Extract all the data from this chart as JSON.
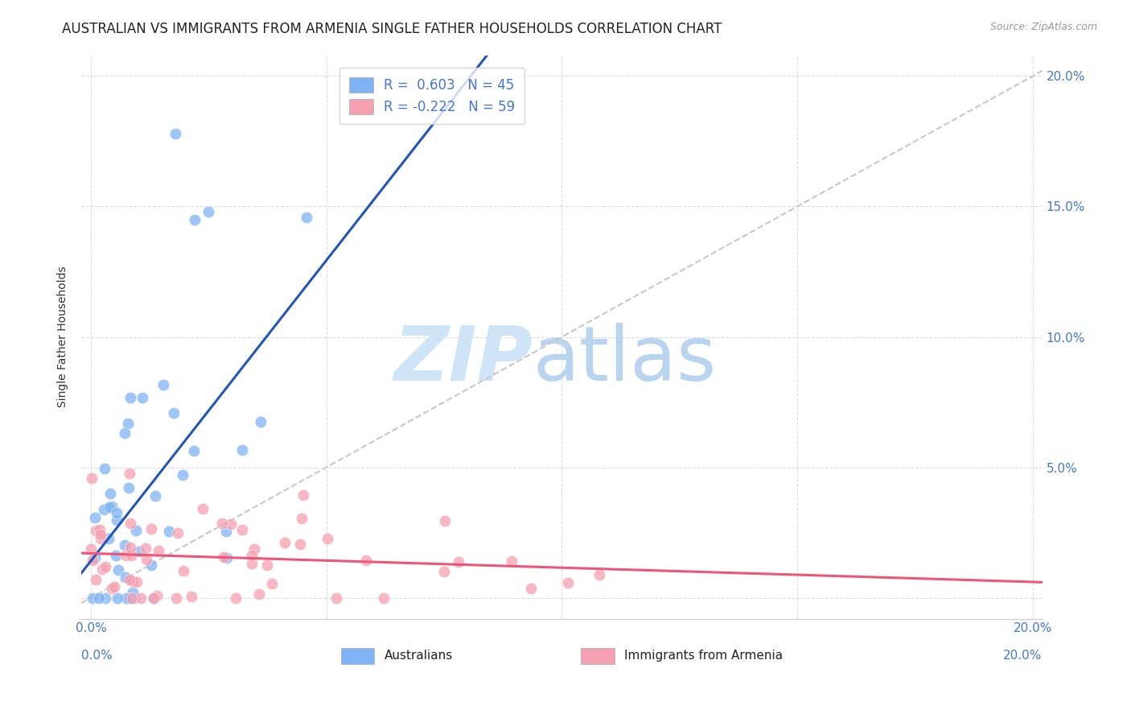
{
  "title": "AUSTRALIAN VS IMMIGRANTS FROM ARMENIA SINGLE FATHER HOUSEHOLDS CORRELATION CHART",
  "source": "Source: ZipAtlas.com",
  "ylabel": "Single Father Households",
  "xlim": [
    -0.002,
    0.202
  ],
  "ylim": [
    -0.008,
    0.208
  ],
  "xtick_vals": [
    0.0,
    0.05,
    0.1,
    0.15,
    0.2
  ],
  "ytick_vals": [
    0.0,
    0.05,
    0.1,
    0.15,
    0.2
  ],
  "xticklabels": [
    "0.0%",
    "",
    "",
    "",
    "20.0%"
  ],
  "yticklabels": [
    "5.0%",
    "10.0%",
    "15.0%",
    "20.0%"
  ],
  "right_ytick_vals": [
    0.05,
    0.1,
    0.15,
    0.2
  ],
  "legend1_label": "R =  0.603   N = 45",
  "legend2_label": "R = -0.222   N = 59",
  "legend1_color": "#7fb3f5",
  "legend2_color": "#f5a0b0",
  "blue_line_color": "#2255bb",
  "pink_line_color": "#ee5577",
  "diag_line_color": "#c8c8c8",
  "watermark_zip_color": "#d0e4f7",
  "watermark_atlas_color": "#b8d4ee",
  "background_color": "#ffffff",
  "title_fontsize": 12,
  "axis_label_fontsize": 10,
  "tick_fontsize": 11,
  "tick_color": "#4477cc",
  "blue_R": 0.603,
  "blue_N": 45,
  "pink_R": -0.222,
  "pink_N": 59
}
